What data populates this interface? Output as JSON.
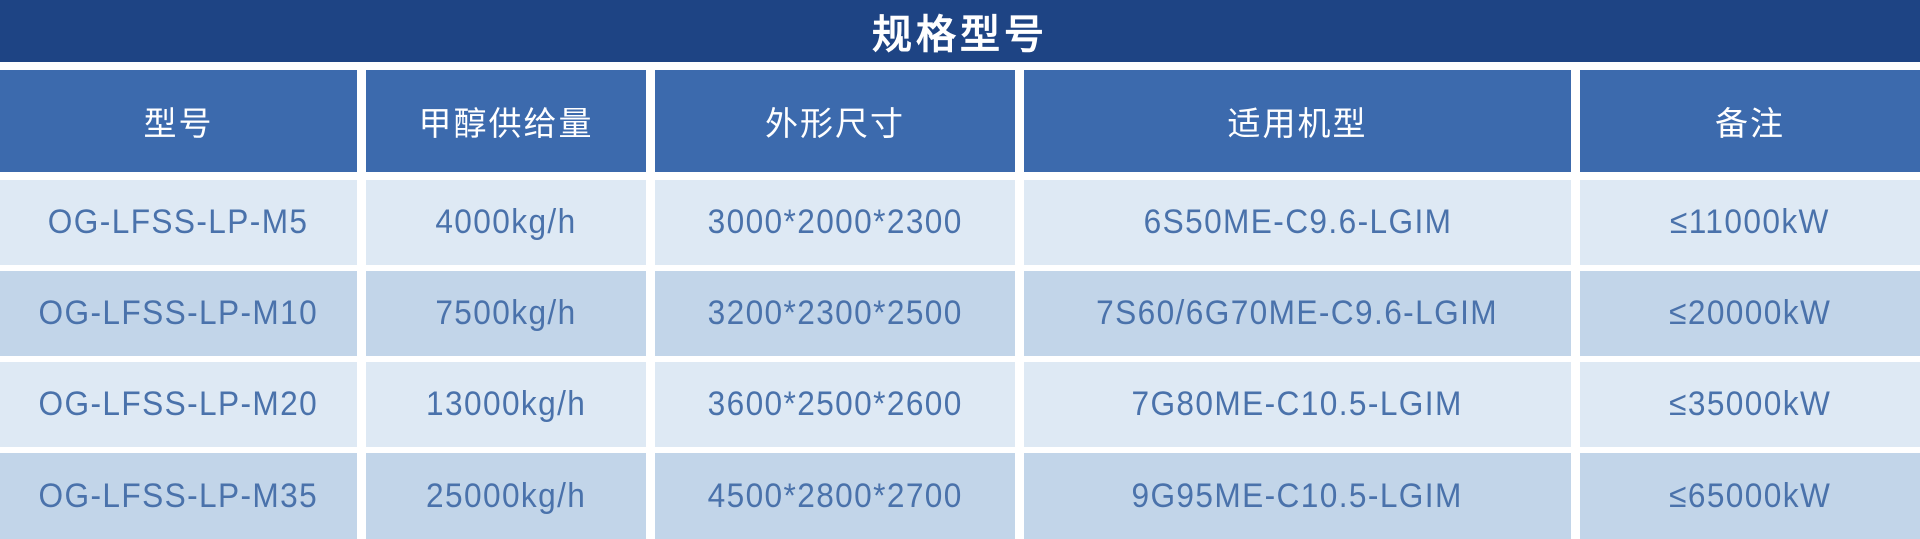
{
  "title": "规格型号",
  "table": {
    "headers": [
      "型号",
      "甲醇供给量",
      "外形尺寸",
      "适用机型",
      "备注"
    ],
    "rows": [
      [
        "OG-LFSS-LP-M5",
        "4000kg/h",
        "3000*2000*2300",
        "6S50ME-C9.6-LGIM",
        "≤11000kW"
      ],
      [
        "OG-LFSS-LP-M10",
        "7500kg/h",
        "3200*2300*2500",
        "7S60/6G70ME-C9.6-LGIM",
        "≤20000kW"
      ],
      [
        "OG-LFSS-LP-M20",
        "13000kg/h",
        "3600*2500*2600",
        "7G80ME-C10.5-LGIM",
        "≤35000kW"
      ],
      [
        "OG-LFSS-LP-M35",
        "25000kg/h",
        "4500*2800*2700",
        "9G95ME-C10.5-LGIM",
        "≤65000kW"
      ]
    ]
  },
  "colors": {
    "title_bar": "#1e4484",
    "header_bg": "#3c6aad",
    "row_odd": "#dee9f4",
    "row_even": "#c2d5e9",
    "data_text": "#4a72ab",
    "divider": "#ffffff"
  }
}
